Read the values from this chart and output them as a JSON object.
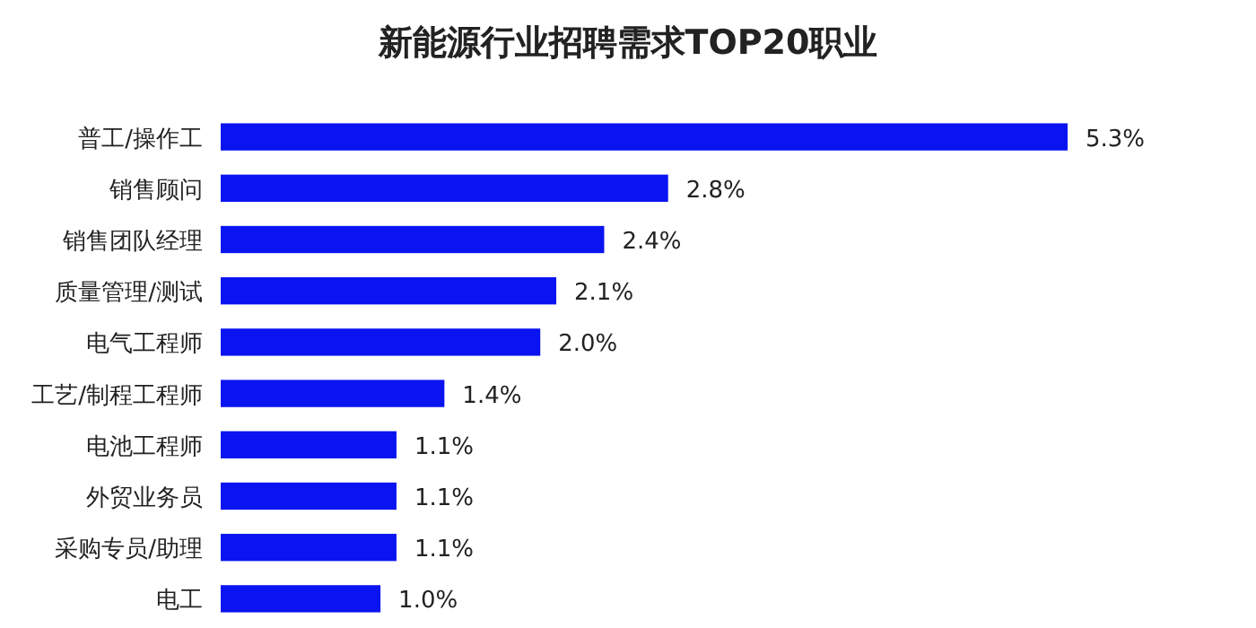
{
  "chart_data": {
    "type": "bar",
    "orientation": "horizontal",
    "title": "新能源行业招聘需求TOP20职业",
    "categories": [
      "普工/操作工",
      "销售顾问",
      "销售团队经理",
      "质量管理/测试",
      "电气工程师",
      "工艺/制程工程师",
      "电池工程师",
      "外贸业务员",
      "采购专员/助理",
      "电工"
    ],
    "values": [
      5.3,
      2.8,
      2.4,
      2.1,
      2.0,
      1.4,
      1.1,
      1.1,
      1.1,
      1.0
    ],
    "value_labels": [
      "5.3%",
      "2.8%",
      "2.4%",
      "2.1%",
      "2.0%",
      "1.4%",
      "1.1%",
      "1.1%",
      "1.1%",
      "1.0%"
    ],
    "color": "#0a14f0"
  }
}
